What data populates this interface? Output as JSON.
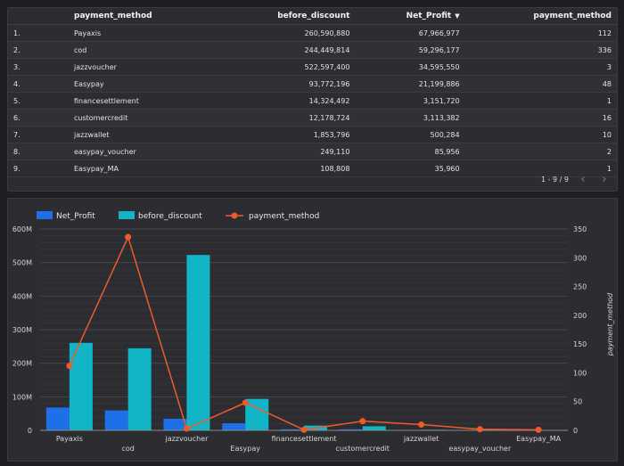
{
  "table": {
    "columns": {
      "payment_method": "payment_method",
      "before_discount": "before_discount",
      "net_profit": "Net_Profit",
      "payment_method_count": "payment_method"
    },
    "sort_indicator": "▼",
    "rows": [
      {
        "index": "1.",
        "payment_method": "Payaxis",
        "before_discount": "260,590,880",
        "net_profit": "67,966,977",
        "count": "112"
      },
      {
        "index": "2.",
        "payment_method": "cod",
        "before_discount": "244,449,814",
        "net_profit": "59,296,177",
        "count": "336"
      },
      {
        "index": "3.",
        "payment_method": "jazzvoucher",
        "before_discount": "522,597,400",
        "net_profit": "34,595,550",
        "count": "3"
      },
      {
        "index": "4.",
        "payment_method": "Easypay",
        "before_discount": "93,772,196",
        "net_profit": "21,199,886",
        "count": "48"
      },
      {
        "index": "5.",
        "payment_method": "financesettlement",
        "before_discount": "14,324,492",
        "net_profit": "3,151,720",
        "count": "1"
      },
      {
        "index": "6.",
        "payment_method": "customercredit",
        "before_discount": "12,178,724",
        "net_profit": "3,113,382",
        "count": "16"
      },
      {
        "index": "7.",
        "payment_method": "jazzwallet",
        "before_discount": "1,853,796",
        "net_profit": "500,284",
        "count": "10"
      },
      {
        "index": "8.",
        "payment_method": "easypay_voucher",
        "before_discount": "249,110",
        "net_profit": "85,956",
        "count": "2"
      },
      {
        "index": "9.",
        "payment_method": "Easypay_MA",
        "before_discount": "108,808",
        "net_profit": "35,960",
        "count": "1"
      }
    ],
    "pagination": "1 - 9 / 9",
    "prev_icon": "‹",
    "next_icon": "›"
  },
  "chart_data": {
    "type": "bar",
    "categories": [
      "Payaxis",
      "cod",
      "jazzvoucher",
      "Easypay",
      "financesettlement",
      "customercredit",
      "jazzwallet",
      "easypay_voucher",
      "Easypay_MA"
    ],
    "series": [
      {
        "name": "Net_Profit",
        "type": "bar",
        "axis": "left",
        "color": "#1e6fe8",
        "values": [
          67966977,
          59296177,
          34595550,
          21199886,
          3151720,
          3113382,
          500284,
          85956,
          35960
        ]
      },
      {
        "name": "before_discount",
        "type": "bar",
        "axis": "left",
        "color": "#12b5c8",
        "values": [
          260590880,
          244449814,
          522597400,
          93772196,
          14324492,
          12178724,
          1853796,
          249110,
          108808
        ]
      },
      {
        "name": "payment_method",
        "type": "line",
        "axis": "right",
        "color": "#f05a28",
        "values": [
          112,
          336,
          3,
          48,
          1,
          16,
          10,
          2,
          1
        ]
      }
    ],
    "ylim_left": [
      0,
      600000000
    ],
    "ylim_right": [
      0,
      350
    ],
    "left_ticks": [
      "0",
      "100M",
      "200M",
      "300M",
      "400M",
      "500M",
      "600M"
    ],
    "right_ticks": [
      "0",
      "50",
      "100",
      "150",
      "200",
      "250",
      "300",
      "350"
    ],
    "ylabel_right": "payment_method",
    "legend_position": "top-left",
    "grid": true
  }
}
